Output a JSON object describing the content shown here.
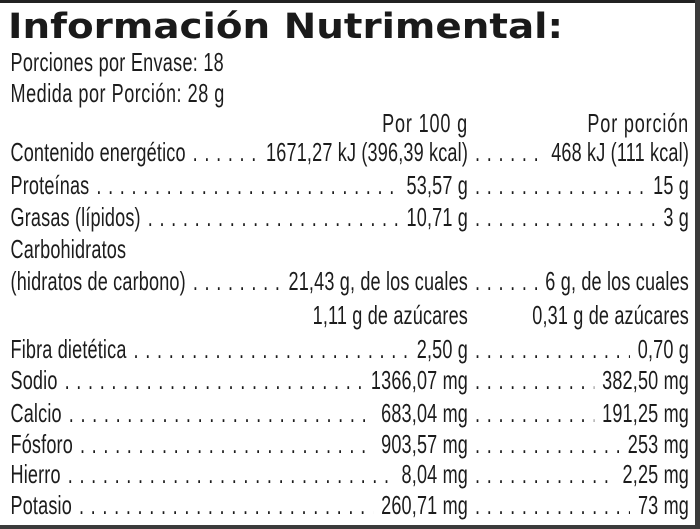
{
  "title": "Información Nutrimental:",
  "serving_info": {
    "servings_per_package": "Porciones por Envase: 18",
    "serving_size": "Medida por Porción: 28 g"
  },
  "columns": {
    "per_100g": "Por 100 g",
    "per_portion": "Por porción"
  },
  "table": {
    "rows": [
      {
        "label": "Contenido energético",
        "per_100g": "1671,27 kJ (396,39 kcal)",
        "per_portion": "468 kJ (111 kcal)",
        "dots": true
      },
      {
        "label": "Proteínas",
        "per_100g": "53,57 g",
        "per_portion": "15 g",
        "dots": true
      },
      {
        "label": "Grasas (lípidos)",
        "per_100g": "10,71 g",
        "per_portion": "3 g",
        "dots": true
      },
      {
        "label": "Carbohidratos",
        "per_100g": "",
        "per_portion": "",
        "dots": false
      },
      {
        "label": "(hidratos de carbono)",
        "per_100g": "21,43 g, de los cuales",
        "per_portion": "6 g, de los cuales",
        "dots": true
      },
      {
        "label": "",
        "per_100g": "1,11 g de azúcares",
        "per_portion": "0,31 g de azúcares",
        "dots": false
      },
      {
        "label": "Fibra dietética",
        "per_100g": "2,50 g",
        "per_portion": "0,70 g",
        "dots": true
      },
      {
        "label": "Sodio",
        "per_100g": "1366,07 mg",
        "per_portion": "382,50 mg",
        "dots": true
      },
      {
        "label": "Calcio",
        "per_100g": "683,04 mg",
        "per_portion": "191,25 mg",
        "dots": true
      },
      {
        "label": "Fósforo",
        "per_100g": "903,57 mg",
        "per_portion": "253 mg",
        "dots": true
      },
      {
        "label": "Hierro",
        "per_100g": "8,04 mg",
        "per_portion": "2,25 mg",
        "dots": true
      },
      {
        "label": "Potasio",
        "per_100g": "260,71 mg",
        "per_portion": "73 mg",
        "dots": true
      }
    ]
  },
  "colors": {
    "text": "#1c1c1c",
    "bars": "#363636",
    "background": "#ffffff"
  }
}
